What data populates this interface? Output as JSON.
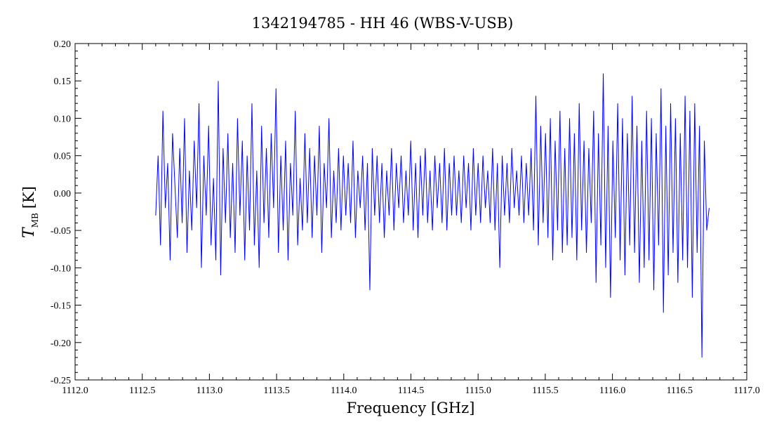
{
  "chart_data": {
    "type": "line",
    "title": "1342194785 - HH 46 (WBS-V-USB)",
    "xlabel": "Frequency [GHz]",
    "ylabel_main": "T",
    "ylabel_sub": "MB",
    "ylabel_unit": "[K]",
    "xlim": [
      1112.0,
      1117.0
    ],
    "ylim": [
      -0.25,
      0.2
    ],
    "xticks": [
      "1112.0",
      "1112.5",
      "1113.0",
      "1113.5",
      "1114.0",
      "1114.5",
      "1115.0",
      "1115.5",
      "1116.0",
      "1116.5",
      "1117.0"
    ],
    "yticks": [
      "0.20",
      "0.15",
      "0.10",
      "0.05",
      "0.00",
      "-0.05",
      "-0.10",
      "-0.15",
      "-0.20",
      "-0.25"
    ],
    "series_color": "#0000ff",
    "series": [
      {
        "x_start": 1112.6,
        "x_end": 1116.72,
        "values": [
          -0.03,
          0.05,
          -0.07,
          0.11,
          -0.02,
          0.04,
          -0.09,
          0.08,
          0.01,
          -0.06,
          0.06,
          -0.04,
          0.1,
          -0.08,
          0.03,
          -0.05,
          0.07,
          -0.02,
          0.12,
          -0.1,
          0.05,
          -0.03,
          0.09,
          -0.07,
          0.02,
          -0.09,
          0.15,
          -0.11,
          0.06,
          -0.04,
          0.08,
          -0.06,
          0.04,
          -0.08,
          0.1,
          -0.03,
          0.07,
          -0.09,
          0.05,
          -0.05,
          0.12,
          -0.07,
          0.03,
          -0.1,
          0.09,
          -0.04,
          0.06,
          -0.06,
          0.08,
          -0.02,
          0.14,
          -0.08,
          0.05,
          -0.05,
          0.07,
          -0.09,
          0.04,
          -0.03,
          0.11,
          -0.07,
          0.02,
          -0.05,
          0.08,
          -0.04,
          0.06,
          -0.06,
          0.05,
          -0.03,
          0.09,
          -0.08,
          0.04,
          -0.02,
          0.1,
          -0.06,
          0.03,
          -0.04,
          0.06,
          -0.05,
          0.05,
          -0.03,
          0.04,
          -0.04,
          0.07,
          -0.06,
          0.03,
          -0.02,
          0.05,
          -0.05,
          0.04,
          -0.13,
          0.06,
          -0.03,
          0.05,
          -0.04,
          0.04,
          -0.06,
          0.03,
          -0.03,
          0.06,
          -0.05,
          0.04,
          -0.02,
          0.05,
          -0.04,
          0.03,
          -0.03,
          0.07,
          -0.05,
          0.04,
          -0.06,
          0.05,
          -0.03,
          0.06,
          -0.04,
          0.03,
          -0.05,
          0.05,
          -0.02,
          0.04,
          -0.04,
          0.06,
          -0.05,
          0.04,
          -0.03,
          0.05,
          -0.03,
          0.03,
          -0.04,
          0.05,
          -0.02,
          0.04,
          -0.05,
          0.06,
          -0.03,
          0.04,
          -0.04,
          0.05,
          -0.02,
          0.03,
          -0.04,
          0.06,
          -0.05,
          0.04,
          -0.1,
          0.05,
          -0.03,
          0.04,
          -0.04,
          0.06,
          -0.02,
          0.03,
          -0.03,
          0.05,
          -0.04,
          0.04,
          -0.03,
          0.06,
          -0.05,
          0.13,
          -0.07,
          0.09,
          -0.04,
          0.08,
          -0.06,
          0.1,
          -0.09,
          0.07,
          -0.05,
          0.11,
          -0.08,
          0.06,
          -0.07,
          0.1,
          -0.06,
          0.08,
          -0.09,
          0.12,
          -0.05,
          0.07,
          -0.08,
          0.06,
          -0.04,
          0.11,
          -0.12,
          0.08,
          -0.07,
          0.16,
          -0.1,
          0.09,
          -0.14,
          0.07,
          -0.06,
          0.12,
          -0.09,
          0.1,
          -0.11,
          0.08,
          -0.07,
          0.13,
          -0.08,
          0.09,
          -0.12,
          0.07,
          -0.1,
          0.11,
          -0.09,
          0.1,
          -0.13,
          0.08,
          -0.07,
          0.14,
          -0.16,
          0.09,
          -0.11,
          0.12,
          -0.08,
          0.1,
          -0.12,
          0.08,
          -0.09,
          0.13,
          -0.1,
          0.11,
          -0.14,
          0.12,
          -0.08,
          0.09,
          -0.22,
          0.07,
          -0.05,
          -0.02
        ]
      }
    ]
  }
}
